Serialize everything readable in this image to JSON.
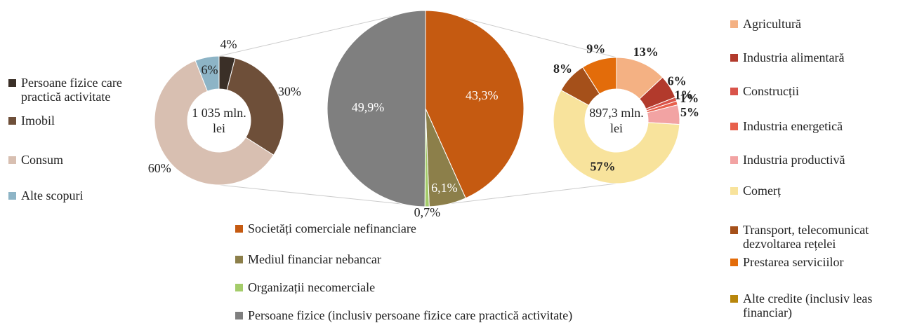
{
  "chart_data": [
    {
      "type": "pie",
      "center_label": "1 035 mln. lei",
      "categories": [
        "Persoane fizice care practică activitate",
        "Imobil",
        "Consum",
        "Alte scopuri"
      ],
      "values": [
        4,
        30,
        60,
        6
      ],
      "value_labels": [
        "4%",
        "30%",
        "60%",
        "6%"
      ],
      "colors": [
        "#3a2f27",
        "#6e4f39",
        "#d8bfb1",
        "#8db4c6"
      ]
    },
    {
      "type": "pie",
      "categories": [
        "Societăți comerciale nefinanciare",
        "Mediul financiar nebancar",
        "Organizații necomerciale",
        "Persoane fizice (inclusiv persoane fizice care practică activitate)"
      ],
      "values": [
        43.3,
        6.1,
        0.7,
        49.9
      ],
      "value_labels": [
        "43,3%",
        "6,1%",
        "0,7%",
        "49,9%"
      ],
      "colors": [
        "#c55a11",
        "#8c7f4a",
        "#a4cc6a",
        "#7f7f7f"
      ]
    },
    {
      "type": "pie",
      "center_label": "897,3 mln. lei",
      "categories": [
        "Agricultură",
        "Industria alimentară",
        "Construcții",
        "Industria energetică",
        "Industria productivă",
        "Comerț",
        "Transport, telecomunicat dezvoltarea rețelei",
        "Prestarea serviciilor",
        "Alte credite (inclusiv leas financiar)"
      ],
      "values": [
        13,
        6,
        1,
        1,
        5,
        57,
        8,
        9,
        0
      ],
      "value_labels": [
        "13%",
        "6%",
        "1%",
        "1%",
        "5%",
        "57%",
        "8%",
        "9%",
        null
      ],
      "colors": [
        "#f4b183",
        "#b23a2c",
        "#d9544a",
        "#e8604c",
        "#f2a3a3",
        "#f8e39c",
        "#a5501a",
        "#e36c0a",
        "#b8860b"
      ]
    }
  ]
}
